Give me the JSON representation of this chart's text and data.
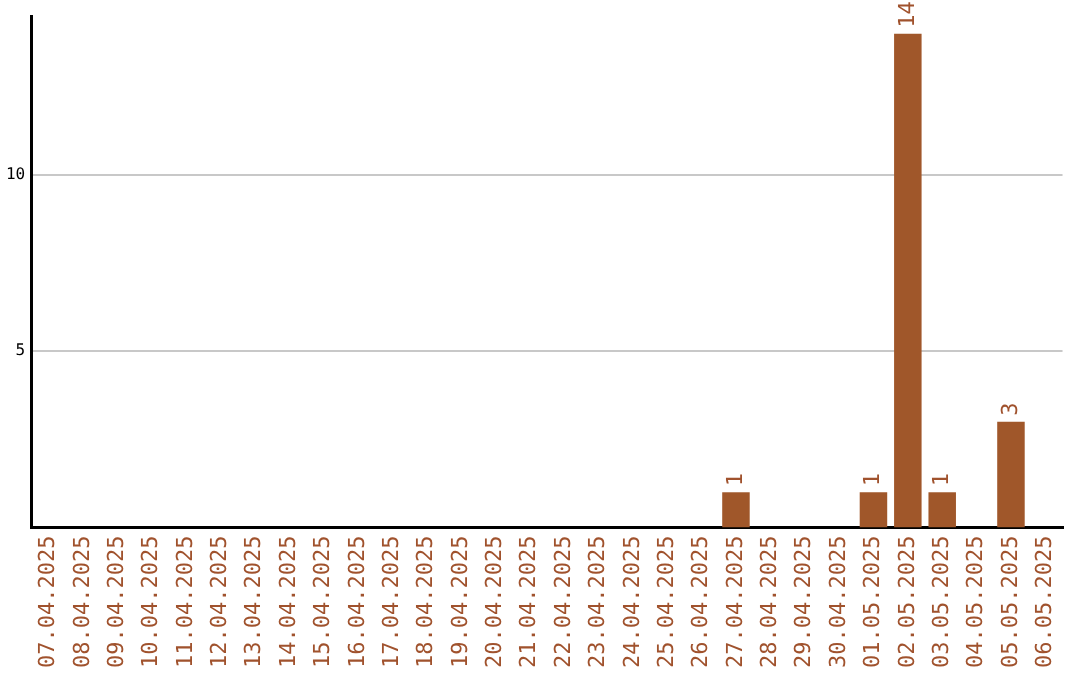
{
  "chart_data": {
    "type": "bar",
    "categories": [
      "07.04.2025",
      "08.04.2025",
      "09.04.2025",
      "10.04.2025",
      "11.04.2025",
      "12.04.2025",
      "13.04.2025",
      "14.04.2025",
      "15.04.2025",
      "16.04.2025",
      "17.04.2025",
      "18.04.2025",
      "19.04.2025",
      "20.04.2025",
      "21.04.2025",
      "22.04.2025",
      "23.04.2025",
      "24.04.2025",
      "25.04.2025",
      "26.04.2025",
      "27.04.2025",
      "28.04.2025",
      "29.04.2025",
      "30.04.2025",
      "01.05.2025",
      "02.05.2025",
      "03.05.2025",
      "04.05.2025",
      "05.05.2025",
      "06.05.2025"
    ],
    "values": [
      0,
      0,
      0,
      0,
      0,
      0,
      0,
      0,
      0,
      0,
      0,
      0,
      0,
      0,
      0,
      0,
      0,
      0,
      0,
      0,
      1,
      0,
      0,
      0,
      1,
      14,
      1,
      0,
      3,
      0
    ],
    "value_labels": [
      null,
      null,
      null,
      null,
      null,
      null,
      null,
      null,
      null,
      null,
      null,
      null,
      null,
      null,
      null,
      null,
      null,
      null,
      null,
      null,
      "1",
      null,
      null,
      null,
      "1",
      "14",
      "1",
      null,
      "3",
      null
    ],
    "color": "#a0572a",
    "ylim": [
      0,
      14.5
    ],
    "yticks": [
      5,
      10
    ],
    "grid": "y",
    "legend": false
  }
}
